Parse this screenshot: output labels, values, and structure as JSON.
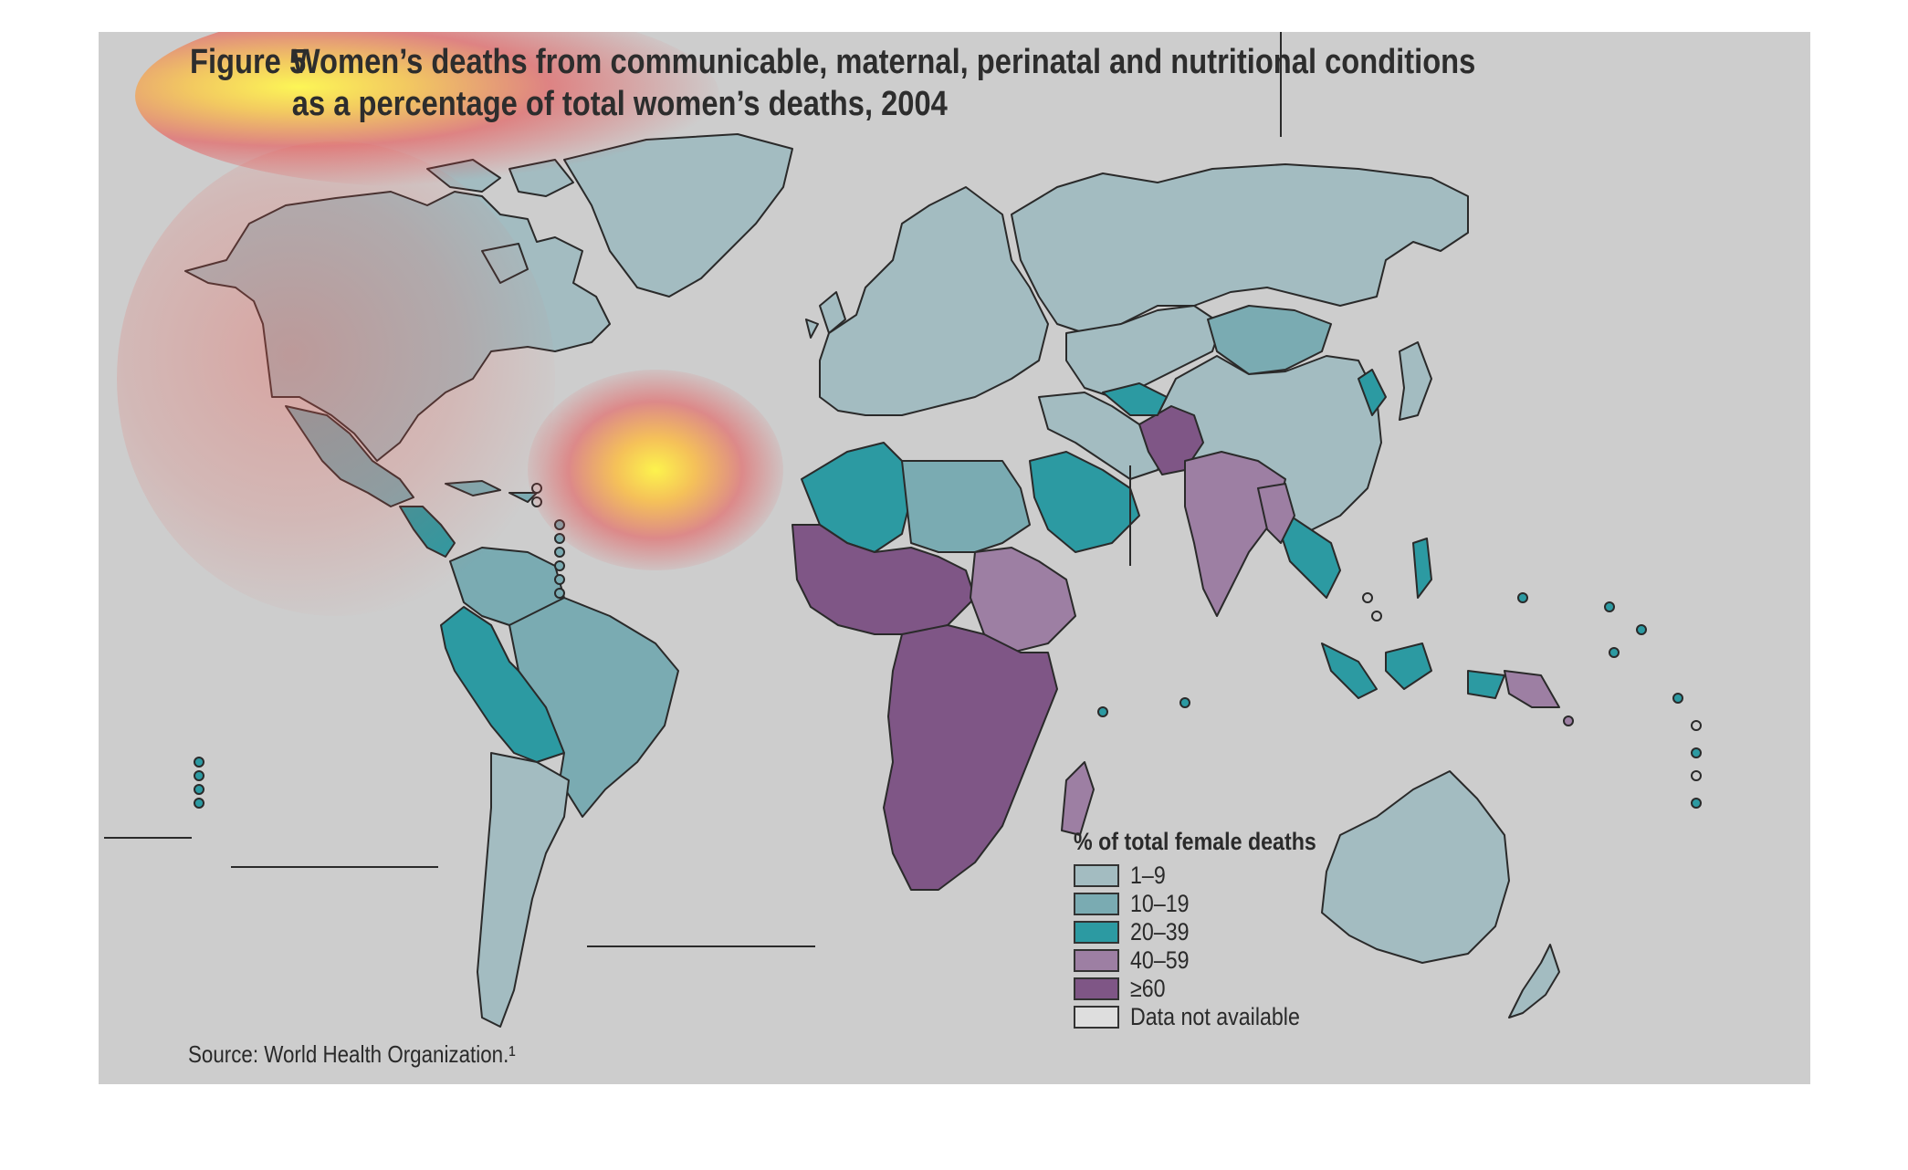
{
  "figure": {
    "label": "Figure 5",
    "title_line1": "Women’s deaths from communicable, maternal, perinatal and nutritional conditions",
    "title_line2": "as a percentage of total women’s deaths, 2004"
  },
  "legend": {
    "title": "% of total female deaths",
    "items": [
      {
        "label": "1–9",
        "color": "#a3bcc1"
      },
      {
        "label": "10–19",
        "color": "#7aabb2"
      },
      {
        "label": "20–39",
        "color": "#2c9aa2"
      },
      {
        "label": "40–59",
        "color": "#9d7fa3"
      },
      {
        "label": "≥60",
        "color": "#7f5686"
      },
      {
        "label": "Data not available",
        "color": "#dedede"
      }
    ]
  },
  "source": "Source: World Health Organization.¹",
  "colors": {
    "background": "#cdcdcd",
    "ocean": "#cdcdcd",
    "heatmap_hot": "#fff34a",
    "heatmap_warm": "#e8404a"
  }
}
